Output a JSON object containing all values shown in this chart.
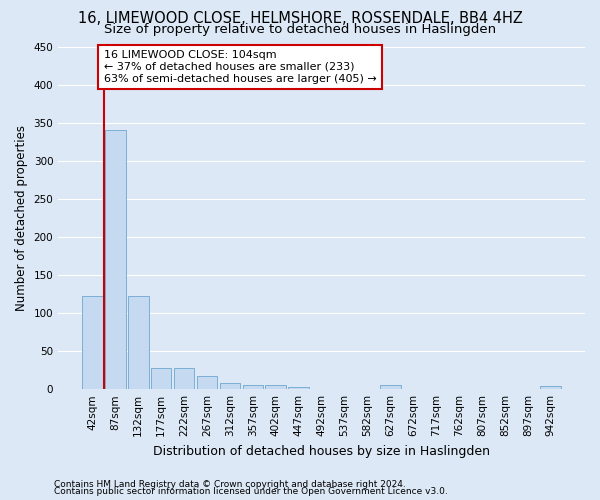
{
  "title1": "16, LIMEWOOD CLOSE, HELMSHORE, ROSSENDALE, BB4 4HZ",
  "title2": "Size of property relative to detached houses in Haslingden",
  "xlabel": "Distribution of detached houses by size in Haslingden",
  "ylabel": "Number of detached properties",
  "footnote1": "Contains HM Land Registry data © Crown copyright and database right 2024.",
  "footnote2": "Contains public sector information licensed under the Open Government Licence v3.0.",
  "bin_labels": [
    "42sqm",
    "87sqm",
    "132sqm",
    "177sqm",
    "222sqm",
    "267sqm",
    "312sqm",
    "357sqm",
    "402sqm",
    "447sqm",
    "492sqm",
    "537sqm",
    "582sqm",
    "627sqm",
    "672sqm",
    "717sqm",
    "762sqm",
    "807sqm",
    "852sqm",
    "897sqm",
    "942sqm"
  ],
  "bar_heights": [
    122,
    340,
    122,
    28,
    28,
    17,
    8,
    6,
    6,
    3,
    0,
    0,
    0,
    5,
    0,
    0,
    0,
    0,
    0,
    0,
    4
  ],
  "bar_color": "#c5d9f0",
  "bar_edge_color": "#7bafd4",
  "red_line_color": "#cc0000",
  "annotation_text": "16 LIMEWOOD CLOSE: 104sqm\n← 37% of detached houses are smaller (233)\n63% of semi-detached houses are larger (405) →",
  "annotation_box_color": "#ffffff",
  "annotation_box_edge_color": "#cc0000",
  "ylim": [
    0,
    450
  ],
  "yticks": [
    0,
    50,
    100,
    150,
    200,
    250,
    300,
    350,
    400,
    450
  ],
  "background_color": "#dce8f5",
  "grid_color": "#ffffff",
  "title_fontsize": 10.5,
  "subtitle_fontsize": 9.5,
  "annotation_fontsize": 8,
  "axis_label_fontsize": 9,
  "ylabel_fontsize": 8.5,
  "tick_fontsize": 7.5,
  "footnote_fontsize": 6.5
}
